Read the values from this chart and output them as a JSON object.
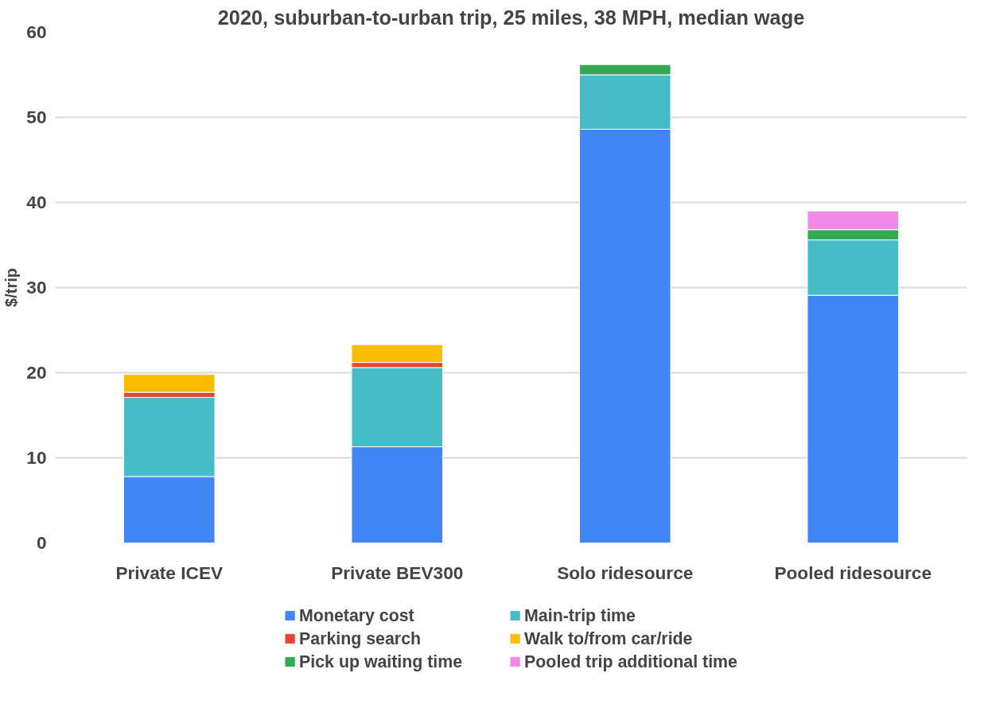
{
  "chart_data": {
    "type": "bar",
    "stacked": true,
    "title": "2020, suburban-to-urban trip, 25 miles, 38 MPH, median wage",
    "ylabel": "$/trip",
    "categories": [
      "Private ICEV",
      "Private BEV300",
      "Solo ridesource",
      "Pooled ridesource"
    ],
    "series": [
      {
        "name": "Monetary cost",
        "color": "#4285f4",
        "values": [
          7.8,
          11.3,
          48.6,
          29.1
        ]
      },
      {
        "name": "Main-trip time",
        "color": "#46bdc6",
        "values": [
          9.3,
          9.3,
          6.4,
          6.5
        ]
      },
      {
        "name": "Parking search",
        "color": "#ea4335",
        "values": [
          0.6,
          0.6,
          null,
          null
        ]
      },
      {
        "name": "Walk to/from car/ride",
        "color": "#fbbc04",
        "values": [
          2.1,
          2.1,
          null,
          null
        ]
      },
      {
        "name": "Pick up waiting time",
        "color": "#34a853",
        "values": [
          null,
          null,
          1.2,
          1.2
        ]
      },
      {
        "name": "Pooled trip additional time",
        "color": "#f088e6",
        "values": [
          null,
          null,
          null,
          2.2
        ]
      }
    ],
    "ylim": [
      0,
      60
    ],
    "yticks": [
      0,
      10,
      20,
      30,
      40,
      50,
      60
    ],
    "grid": "y",
    "legend": "bottom"
  }
}
